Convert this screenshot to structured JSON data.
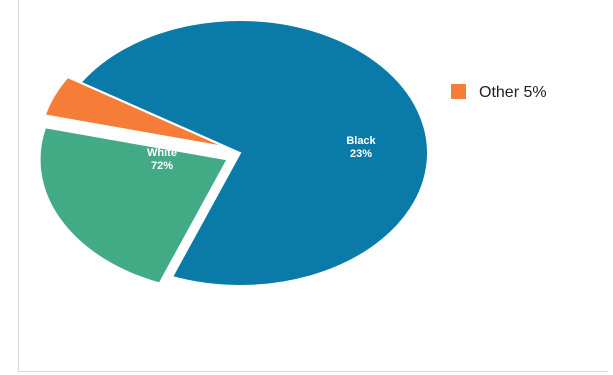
{
  "chart_data": {
    "type": "pie",
    "title": "",
    "categories": [
      "White",
      "Black",
      "Other"
    ],
    "values": [
      72,
      23,
      5
    ],
    "labels": [
      "72%",
      "23%",
      "5%"
    ],
    "colors": [
      "#0a7aa8",
      "#43aa86",
      "#f57d38"
    ],
    "exploded": [
      "Black",
      "Other"
    ],
    "legend": {
      "placement": "right",
      "entries": [
        {
          "name": "Other",
          "value_label": "5%",
          "color": "#f57d38"
        }
      ]
    },
    "inline_labels": [
      "White",
      "Black"
    ]
  }
}
